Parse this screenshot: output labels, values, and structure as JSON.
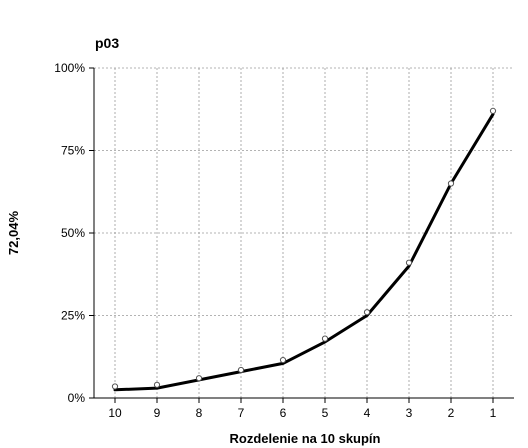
{
  "chart_data": {
    "type": "line",
    "title": "p03",
    "xlabel": "Rozdelenie na 10 skupín",
    "ylabel": "72,04%",
    "categories": [
      "10",
      "9",
      "8",
      "7",
      "6",
      "5",
      "4",
      "3",
      "2",
      "1"
    ],
    "yticks": [
      "0%",
      "25%",
      "50%",
      "75%",
      "100%"
    ],
    "ylim": [
      0,
      100
    ],
    "grid": true,
    "series": [
      {
        "kind": "line",
        "values": [
          2.5,
          3,
          5.5,
          8,
          10.5,
          17,
          25,
          40,
          65,
          86
        ],
        "color": "#000000"
      },
      {
        "kind": "markers",
        "values": [
          3.5,
          4,
          6,
          8.5,
          11.5,
          18,
          26,
          41,
          65,
          87
        ],
        "color": "#555555"
      }
    ]
  }
}
